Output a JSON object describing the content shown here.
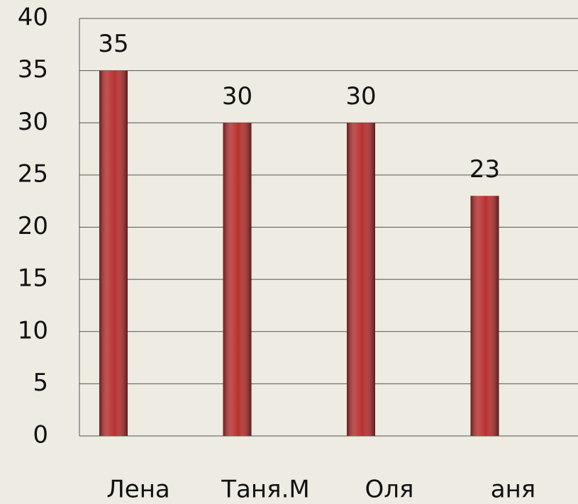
{
  "chart_data": {
    "type": "bar",
    "categories": [
      "Лена",
      "Таня.М",
      "Оля",
      "аня"
    ],
    "values": [
      35,
      30,
      30,
      23
    ],
    "color": "#b8302f",
    "ylim": [
      0,
      40
    ],
    "yticks": [
      0,
      5,
      10,
      15,
      20,
      25,
      30,
      35,
      40
    ],
    "grid": true
  }
}
